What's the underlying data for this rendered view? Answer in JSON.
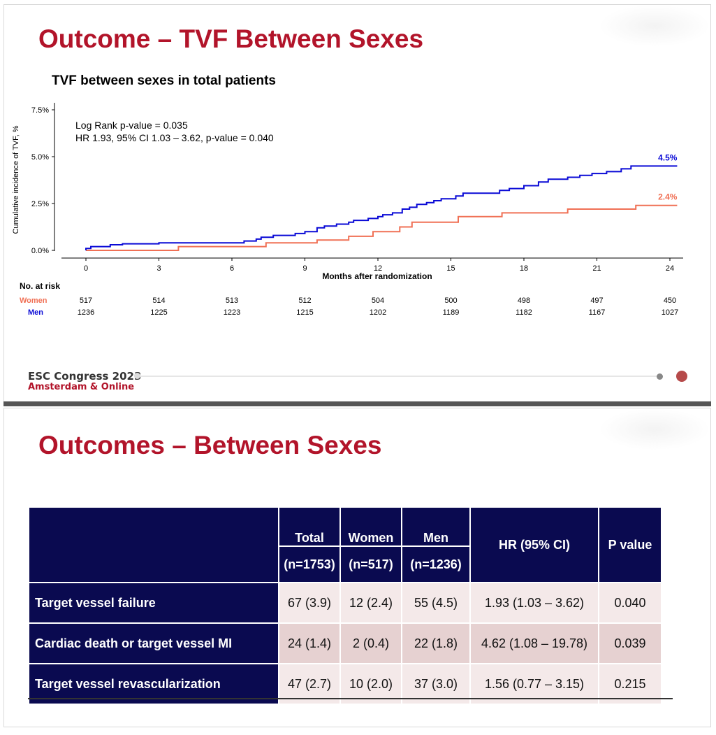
{
  "slide1": {
    "title": "Outcome – TVF Between Sexes",
    "footer_brand": "ESC Congress 2023",
    "footer_sub": "Amsterdam & Online"
  },
  "chart_data": {
    "type": "line",
    "title": "TVF between sexes in total patients",
    "xlabel": "Months after randomization",
    "ylabel": "Cumulative incidence of TVF, %",
    "xlim": [
      0,
      24
    ],
    "ylim": [
      0,
      7.5
    ],
    "x_ticks": [
      "0",
      "3",
      "6",
      "9",
      "12",
      "15",
      "18",
      "21",
      "24"
    ],
    "y_ticks": [
      "0.0%",
      "2.5%",
      "5.0%",
      "7.5%"
    ],
    "annotations": [
      "Log Rank p-value = 0.035",
      "HR 1.93, 95% CI 1.03 – 3.62, p-value = 0.040"
    ],
    "grid": false,
    "series": [
      {
        "name": "Men",
        "color": "#0a0ad6",
        "end_label": "4.5%",
        "points": [
          [
            0,
            0
          ],
          [
            0,
            0.1
          ],
          [
            0.2,
            0.1
          ],
          [
            0.2,
            0.2
          ],
          [
            1,
            0.2
          ],
          [
            1,
            0.3
          ],
          [
            1.5,
            0.3
          ],
          [
            1.5,
            0.35
          ],
          [
            3,
            0.35
          ],
          [
            3,
            0.4
          ],
          [
            6.5,
            0.4
          ],
          [
            6.5,
            0.5
          ],
          [
            7,
            0.5
          ],
          [
            7,
            0.6
          ],
          [
            7.2,
            0.6
          ],
          [
            7.2,
            0.7
          ],
          [
            7.7,
            0.7
          ],
          [
            7.7,
            0.8
          ],
          [
            8.6,
            0.8
          ],
          [
            8.6,
            0.9
          ],
          [
            9,
            0.9
          ],
          [
            9,
            1.0
          ],
          [
            9.5,
            1.0
          ],
          [
            9.5,
            1.2
          ],
          [
            9.8,
            1.2
          ],
          [
            9.8,
            1.3
          ],
          [
            10.3,
            1.3
          ],
          [
            10.3,
            1.4
          ],
          [
            10.8,
            1.4
          ],
          [
            10.8,
            1.5
          ],
          [
            11,
            1.5
          ],
          [
            11,
            1.6
          ],
          [
            11.6,
            1.6
          ],
          [
            11.6,
            1.7
          ],
          [
            12,
            1.7
          ],
          [
            12,
            1.8
          ],
          [
            12.2,
            1.8
          ],
          [
            12.2,
            1.9
          ],
          [
            12.6,
            1.9
          ],
          [
            12.6,
            2.0
          ],
          [
            13,
            2.0
          ],
          [
            13,
            2.2
          ],
          [
            13.3,
            2.2
          ],
          [
            13.3,
            2.3
          ],
          [
            13.6,
            2.3
          ],
          [
            13.6,
            2.45
          ],
          [
            14,
            2.45
          ],
          [
            14,
            2.55
          ],
          [
            14.3,
            2.55
          ],
          [
            14.3,
            2.65
          ],
          [
            14.6,
            2.65
          ],
          [
            14.6,
            2.75
          ],
          [
            15.2,
            2.75
          ],
          [
            15.2,
            2.9
          ],
          [
            15.5,
            2.9
          ],
          [
            15.5,
            3.05
          ],
          [
            17,
            3.05
          ],
          [
            17,
            3.2
          ],
          [
            17.4,
            3.2
          ],
          [
            17.4,
            3.3
          ],
          [
            18,
            3.3
          ],
          [
            18,
            3.45
          ],
          [
            18.6,
            3.45
          ],
          [
            18.6,
            3.65
          ],
          [
            19,
            3.65
          ],
          [
            19,
            3.8
          ],
          [
            19.8,
            3.8
          ],
          [
            19.8,
            3.9
          ],
          [
            20.3,
            3.9
          ],
          [
            20.3,
            4.0
          ],
          [
            20.8,
            4.0
          ],
          [
            20.8,
            4.1
          ],
          [
            21.4,
            4.1
          ],
          [
            21.4,
            4.2
          ],
          [
            22,
            4.2
          ],
          [
            22,
            4.35
          ],
          [
            22.4,
            4.35
          ],
          [
            22.4,
            4.5
          ],
          [
            24.3,
            4.5
          ]
        ]
      },
      {
        "name": "Women",
        "color": "#f07055",
        "end_label": "2.4%",
        "points": [
          [
            0,
            0
          ],
          [
            3.8,
            0
          ],
          [
            3.8,
            0.2
          ],
          [
            7.4,
            0.2
          ],
          [
            7.4,
            0.4
          ],
          [
            9.5,
            0.4
          ],
          [
            9.5,
            0.55
          ],
          [
            10.8,
            0.55
          ],
          [
            10.8,
            0.75
          ],
          [
            11.8,
            0.75
          ],
          [
            11.8,
            1.0
          ],
          [
            12.9,
            1.0
          ],
          [
            12.9,
            1.25
          ],
          [
            13.4,
            1.25
          ],
          [
            13.4,
            1.5
          ],
          [
            15.3,
            1.5
          ],
          [
            15.3,
            1.8
          ],
          [
            17.1,
            1.8
          ],
          [
            17.1,
            2.0
          ],
          [
            19.8,
            2.0
          ],
          [
            19.8,
            2.2
          ],
          [
            22.6,
            2.2
          ],
          [
            22.6,
            2.4
          ],
          [
            24.3,
            2.4
          ]
        ]
      }
    ],
    "risk_table": {
      "header": "No. at risk",
      "rows": [
        {
          "label": "Women",
          "color": "#f07055",
          "values": [
            "517",
            "514",
            "513",
            "512",
            "504",
            "500",
            "498",
            "497",
            "450"
          ]
        },
        {
          "label": "Men",
          "color": "#0a0ad6",
          "values": [
            "1236",
            "1225",
            "1223",
            "1215",
            "1202",
            "1189",
            "1182",
            "1167",
            "1027"
          ]
        }
      ]
    }
  },
  "slide2": {
    "title": "Outcomes – Between Sexes",
    "table": {
      "headers": [
        {
          "top": "Total",
          "bottom": "(n=1753)"
        },
        {
          "top": "Women",
          "bottom": "(n=517)"
        },
        {
          "top": "Men",
          "bottom": "(n=1236)"
        },
        {
          "top": "HR (95% CI)",
          "bottom": ""
        },
        {
          "top": "P value",
          "bottom": ""
        }
      ],
      "rows": [
        {
          "label": "Target vessel failure",
          "cells": [
            "67 (3.9)",
            "12 (2.4)",
            "55 (4.5)",
            "1.93 (1.03 – 3.62)",
            "0.040"
          ]
        },
        {
          "label": "Cardiac death or target vessel MI",
          "cells": [
            "24 (1.4)",
            "2 (0.4)",
            "22 (1.8)",
            "4.62 (1.08 – 19.78)",
            "0.039"
          ]
        },
        {
          "label": "Target vessel revascularization",
          "cells": [
            "47 (2.7)",
            "10 (2.0)",
            "37 (3.0)",
            "1.56 (0.77 – 3.15)",
            "0.215"
          ]
        }
      ]
    }
  }
}
